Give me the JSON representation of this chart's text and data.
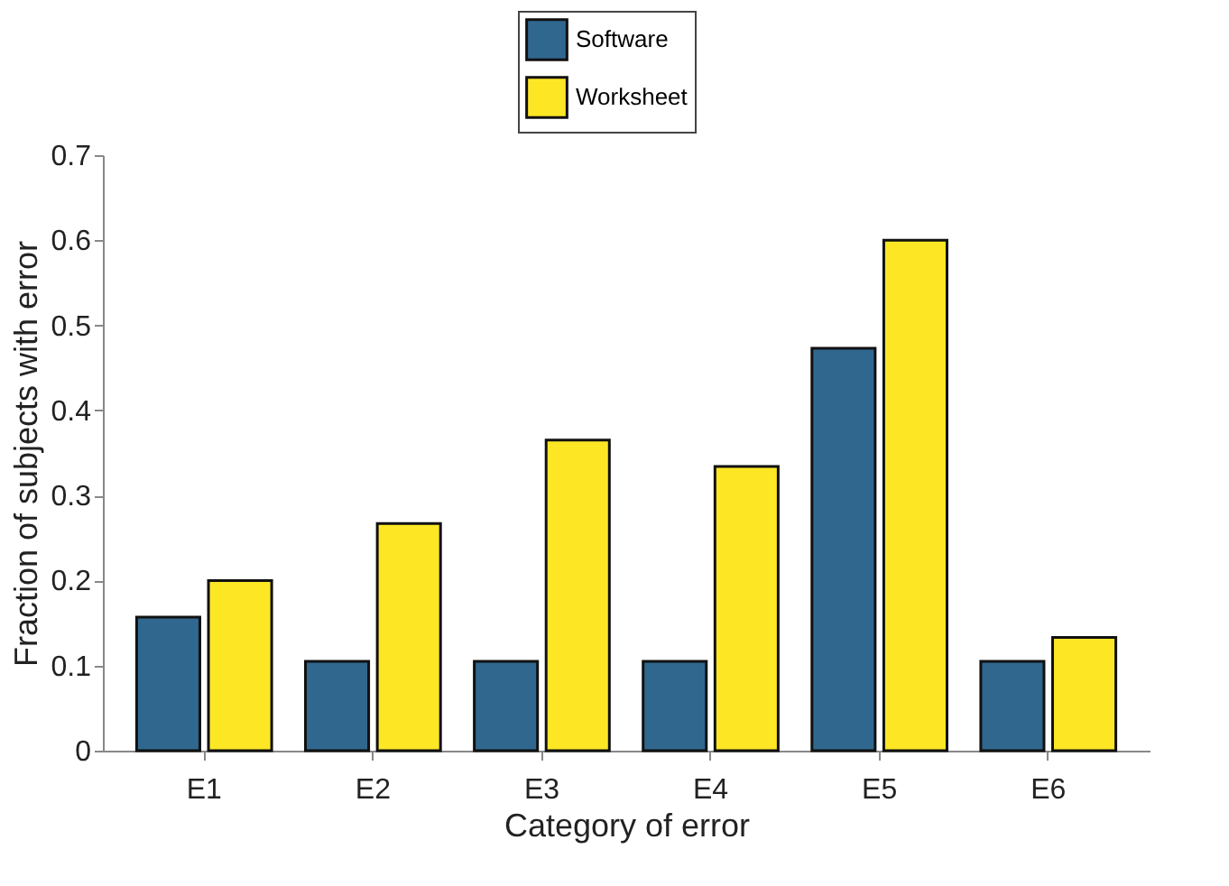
{
  "chart_data": {
    "type": "bar",
    "xlabel": "Category of error",
    "ylabel": "Fraction of subjects with error",
    "categories": [
      "E1",
      "E2",
      "E3",
      "E4",
      "E5",
      "E6"
    ],
    "series": [
      {
        "name": "Software",
        "color": "#30678f",
        "values": [
          0.157,
          0.105,
          0.105,
          0.105,
          0.473,
          0.105
        ]
      },
      {
        "name": "Worksheet",
        "color": "#fde725",
        "values": [
          0.2,
          0.267,
          0.365,
          0.334,
          0.6,
          0.133
        ]
      }
    ],
    "ylim": [
      0,
      0.7
    ],
    "yticks": [
      0,
      0.1,
      0.2,
      0.3,
      0.4,
      0.5,
      0.6,
      0.7
    ],
    "grid": false,
    "legend": "top"
  }
}
